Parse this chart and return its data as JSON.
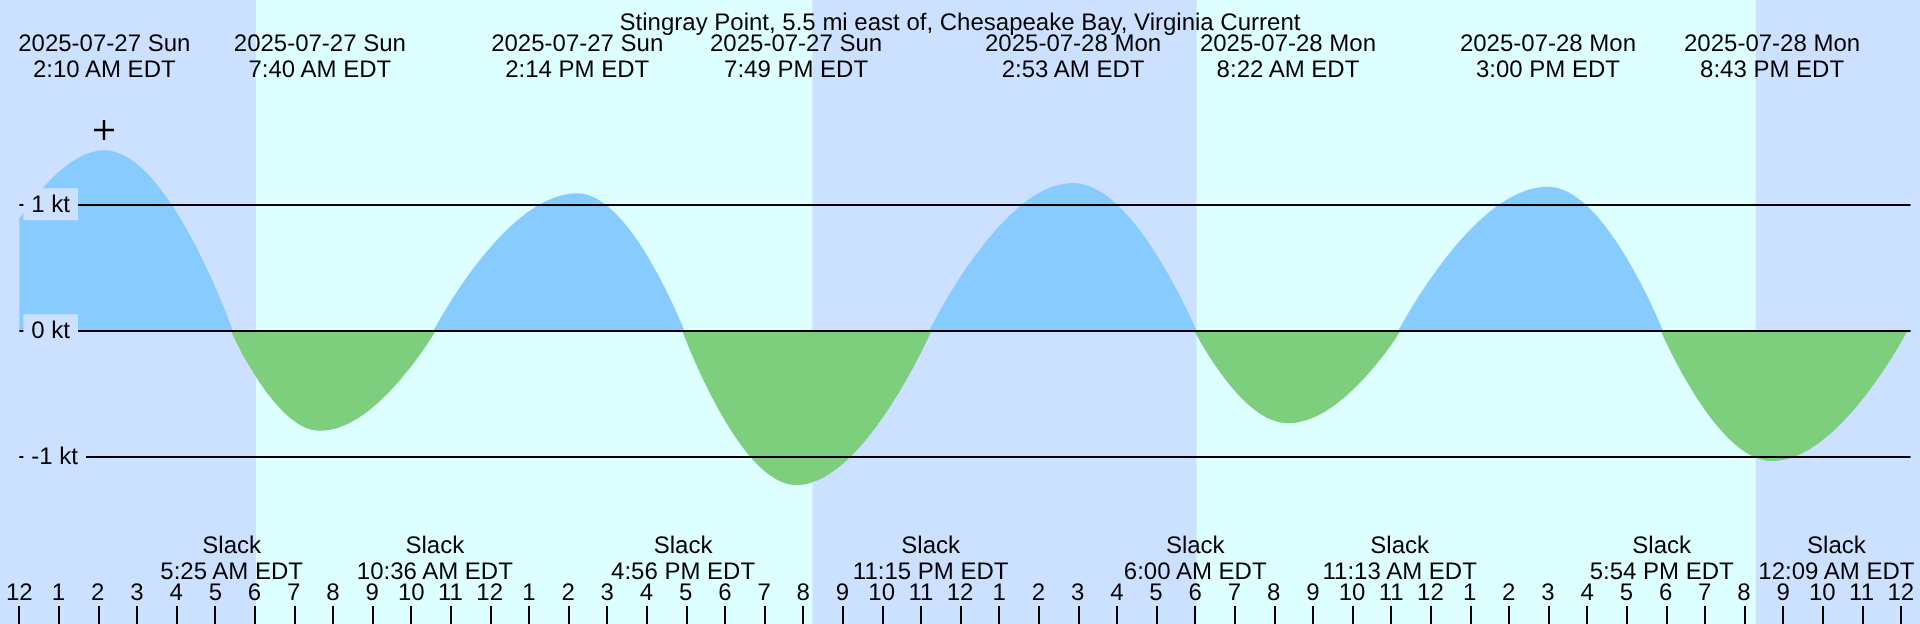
{
  "chart_data": {
    "type": "area",
    "title": "Stingray Point, 5.5 mi east of, Chesapeake Bay, Virginia Current",
    "xlim": [
      "2025-07-27T00:00",
      "2025-07-29T00:15"
    ],
    "ylim": [
      -2.33,
      2.62
    ],
    "xticks": [
      {
        "value": "2025-07-27T00:00",
        "label": "12"
      },
      {
        "value": "2025-07-27T01:00",
        "label": "1"
      },
      {
        "value": "2025-07-27T02:00",
        "label": "2"
      },
      {
        "value": "2025-07-27T03:00",
        "label": "3"
      },
      {
        "value": "2025-07-27T04:00",
        "label": "4"
      },
      {
        "value": "2025-07-27T05:00",
        "label": "5"
      },
      {
        "value": "2025-07-27T06:00",
        "label": "6"
      },
      {
        "value": "2025-07-27T07:00",
        "label": "7"
      },
      {
        "value": "2025-07-27T08:00",
        "label": "8"
      },
      {
        "value": "2025-07-27T09:00",
        "label": "9"
      },
      {
        "value": "2025-07-27T10:00",
        "label": "10"
      },
      {
        "value": "2025-07-27T11:00",
        "label": "11"
      },
      {
        "value": "2025-07-27T12:00",
        "label": "12"
      },
      {
        "value": "2025-07-27T13:00",
        "label": "1"
      },
      {
        "value": "2025-07-27T14:00",
        "label": "2"
      },
      {
        "value": "2025-07-27T15:00",
        "label": "3"
      },
      {
        "value": "2025-07-27T16:00",
        "label": "4"
      },
      {
        "value": "2025-07-27T17:00",
        "label": "5"
      },
      {
        "value": "2025-07-27T18:00",
        "label": "6"
      },
      {
        "value": "2025-07-27T19:00",
        "label": "7"
      },
      {
        "value": "2025-07-27T20:00",
        "label": "8"
      },
      {
        "value": "2025-07-27T21:00",
        "label": "9"
      },
      {
        "value": "2025-07-27T22:00",
        "label": "10"
      },
      {
        "value": "2025-07-27T23:00",
        "label": "11"
      },
      {
        "value": "2025-07-28T00:00",
        "label": "12"
      },
      {
        "value": "2025-07-28T01:00",
        "label": "1"
      },
      {
        "value": "2025-07-28T02:00",
        "label": "2"
      },
      {
        "value": "2025-07-28T03:00",
        "label": "3"
      },
      {
        "value": "2025-07-28T04:00",
        "label": "4"
      },
      {
        "value": "2025-07-28T05:00",
        "label": "5"
      },
      {
        "value": "2025-07-28T06:00",
        "label": "6"
      },
      {
        "value": "2025-07-28T07:00",
        "label": "7"
      },
      {
        "value": "2025-07-28T08:00",
        "label": "8"
      },
      {
        "value": "2025-07-28T09:00",
        "label": "9"
      },
      {
        "value": "2025-07-28T10:00",
        "label": "10"
      },
      {
        "value": "2025-07-28T11:00",
        "label": "11"
      },
      {
        "value": "2025-07-28T12:00",
        "label": "12"
      },
      {
        "value": "2025-07-28T13:00",
        "label": "1"
      },
      {
        "value": "2025-07-28T14:00",
        "label": "2"
      },
      {
        "value": "2025-07-28T15:00",
        "label": "3"
      },
      {
        "value": "2025-07-28T16:00",
        "label": "4"
      },
      {
        "value": "2025-07-28T17:00",
        "label": "5"
      },
      {
        "value": "2025-07-28T18:00",
        "label": "6"
      },
      {
        "value": "2025-07-28T19:00",
        "label": "7"
      },
      {
        "value": "2025-07-28T20:00",
        "label": "8"
      },
      {
        "value": "2025-07-28T21:00",
        "label": "9"
      },
      {
        "value": "2025-07-28T22:00",
        "label": "10"
      },
      {
        "value": "2025-07-28T23:00",
        "label": "11"
      },
      {
        "value": "2025-07-29T00:00",
        "label": "12"
      }
    ],
    "yticks": [
      {
        "value": -1,
        "label": "-1 kt"
      },
      {
        "value": 0,
        "label": "0 kt"
      },
      {
        "value": 1,
        "label": "1 kt"
      }
    ],
    "grid": "y",
    "series": [
      {
        "color": "#87cbff",
        "x": [
          "2025-07-27T00:00",
          "2025-07-27T02:10",
          "2025-07-27T05:25",
          "2025-07-27T08:00",
          "2025-07-27T10:36",
          "2025-07-27T14:14",
          "2025-07-27T16:56",
          "2025-07-27T20:00",
          "2025-07-27T23:15",
          "2025-07-28T02:53",
          "2025-07-28T06:00",
          "2025-07-28T08:30",
          "2025-07-28T11:13",
          "2025-07-28T15:00",
          "2025-07-28T17:54"
        ],
        "values": [
          0.87,
          1.42,
          0,
          null,
          0,
          1.08,
          0,
          null,
          0,
          1.16,
          0,
          null,
          0,
          1.13,
          0
        ]
      },
      {
        "color": "#7dce7d",
        "x": [
          "2025-07-27T05:25",
          "2025-07-27T07:40",
          "2025-07-27T10:36",
          "2025-07-27T14:00",
          "2025-07-27T16:56",
          "2025-07-27T19:49",
          "2025-07-27T23:15",
          "2025-07-28T03:00",
          "2025-07-28T06:00",
          "2025-07-28T08:22",
          "2025-07-28T11:13",
          "2025-07-28T15:00",
          "2025-07-28T17:54",
          "2025-07-28T20:43",
          "2025-07-29T00:09"
        ],
        "values": [
          0,
          -0.79,
          0,
          null,
          0,
          -1.22,
          0,
          null,
          0,
          -0.73,
          0,
          null,
          0,
          -1.03,
          0
        ]
      }
    ],
    "bands": [
      {
        "axis": "x",
        "from": "2025-07-27T06:02",
        "to": "2025-07-27T20:14",
        "color": "#ddffff"
      },
      {
        "axis": "x",
        "from": "2025-07-28T06:02",
        "to": "2025-07-28T20:18",
        "color": "#ddffff"
      }
    ],
    "annotations": [
      "2025-07-27 Sun\n2:10 AM EDT",
      "2025-07-27 Sun\n7:40 AM EDT",
      "2025-07-27 Sun\n2:14 PM EDT",
      "2025-07-27 Sun\n7:49 PM EDT",
      "2025-07-28 Mon\n2:53 AM EDT",
      "2025-07-28 Mon\n8:22 AM EDT",
      "2025-07-28 Mon\n3:00 PM EDT",
      "2025-07-28 Mon\n8:43 PM EDT",
      "Slack\n5:25 AM EDT",
      "Slack\n10:36 AM EDT",
      "Slack\n4:56 PM EDT",
      "Slack\n11:15 PM EDT",
      "Slack\n6:00 AM EDT",
      "Slack\n11:13 AM EDT",
      "Slack\n5:54 PM EDT",
      "Slack\n12:09 AM EDT"
    ]
  }
}
